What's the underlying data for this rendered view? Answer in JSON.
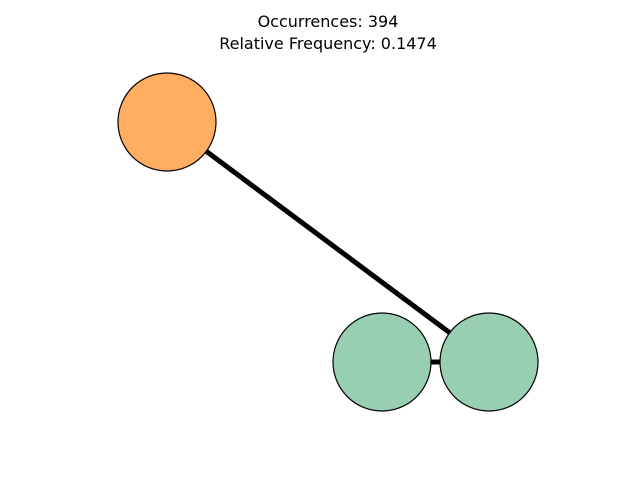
{
  "title": {
    "occurrences": "Occurrences: 394",
    "relative_frequency": "Relative Frequency: 0.1474"
  },
  "colors": {
    "orange_node": "#FFAD61",
    "green_node": "#98CFB3",
    "edge": "#000000",
    "node_outline": "#000000"
  },
  "graph": {
    "nodes": [
      {
        "id": "node-1",
        "color_key": "orange_node"
      },
      {
        "id": "node-2",
        "color_key": "green_node"
      },
      {
        "id": "node-3",
        "color_key": "green_node"
      }
    ],
    "edges": [
      {
        "source": "node-1",
        "target": "node-3"
      },
      {
        "source": "node-2",
        "target": "node-3"
      }
    ]
  }
}
